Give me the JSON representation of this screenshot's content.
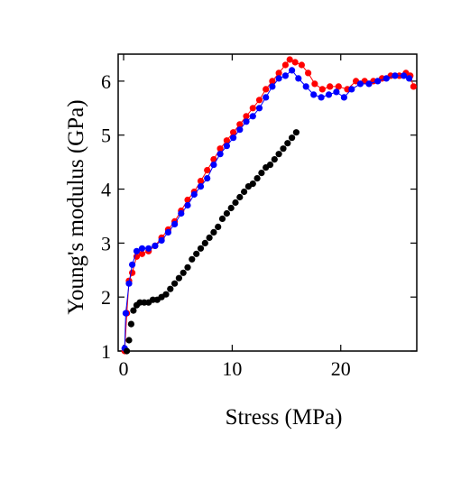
{
  "chart_data": {
    "type": "scatter",
    "xlabel": "Stress (MPa)",
    "ylabel": "Young's modulus (GPa)",
    "xlim": [
      -0.5,
      27
    ],
    "ylim": [
      1,
      6.5
    ],
    "xticks": [
      0,
      10,
      20
    ],
    "yticks": [
      1,
      2,
      3,
      4,
      5,
      6
    ],
    "grid": false,
    "series": [
      {
        "color": "#ff0000",
        "connected": true,
        "points": [
          [
            0.1,
            1.0
          ],
          [
            0.3,
            1.7
          ],
          [
            0.5,
            2.3
          ],
          [
            0.8,
            2.45
          ],
          [
            1.2,
            2.75
          ],
          [
            1.7,
            2.8
          ],
          [
            2.3,
            2.85
          ],
          [
            2.9,
            2.95
          ],
          [
            3.5,
            3.1
          ],
          [
            4.1,
            3.25
          ],
          [
            4.7,
            3.4
          ],
          [
            5.3,
            3.6
          ],
          [
            5.9,
            3.8
          ],
          [
            6.5,
            3.95
          ],
          [
            7.1,
            4.15
          ],
          [
            7.7,
            4.35
          ],
          [
            8.3,
            4.55
          ],
          [
            8.9,
            4.75
          ],
          [
            9.5,
            4.9
          ],
          [
            10.1,
            5.05
          ],
          [
            10.7,
            5.2
          ],
          [
            11.3,
            5.35
          ],
          [
            11.9,
            5.5
          ],
          [
            12.5,
            5.65
          ],
          [
            13.1,
            5.85
          ],
          [
            13.7,
            6.0
          ],
          [
            14.3,
            6.15
          ],
          [
            14.9,
            6.3
          ],
          [
            15.3,
            6.4
          ],
          [
            15.8,
            6.35
          ],
          [
            16.4,
            6.3
          ],
          [
            17.0,
            6.15
          ],
          [
            17.6,
            5.95
          ],
          [
            18.3,
            5.85
          ],
          [
            19.0,
            5.9
          ],
          [
            19.8,
            5.9
          ],
          [
            20.6,
            5.85
          ],
          [
            21.4,
            6.0
          ],
          [
            22.2,
            6.0
          ],
          [
            23.0,
            6.0
          ],
          [
            23.8,
            6.05
          ],
          [
            24.6,
            6.1
          ],
          [
            25.4,
            6.1
          ],
          [
            26.0,
            6.15
          ],
          [
            26.4,
            6.1
          ],
          [
            26.7,
            5.9
          ]
        ]
      },
      {
        "color": "#0000ff",
        "connected": true,
        "points": [
          [
            0.1,
            1.05
          ],
          [
            0.2,
            1.7
          ],
          [
            0.5,
            2.25
          ],
          [
            0.8,
            2.6
          ],
          [
            1.2,
            2.85
          ],
          [
            1.7,
            2.9
          ],
          [
            2.3,
            2.9
          ],
          [
            2.9,
            2.95
          ],
          [
            3.5,
            3.05
          ],
          [
            4.1,
            3.2
          ],
          [
            4.7,
            3.35
          ],
          [
            5.3,
            3.55
          ],
          [
            5.9,
            3.7
          ],
          [
            6.5,
            3.9
          ],
          [
            7.1,
            4.05
          ],
          [
            7.7,
            4.2
          ],
          [
            8.3,
            4.45
          ],
          [
            8.9,
            4.65
          ],
          [
            9.5,
            4.8
          ],
          [
            10.1,
            4.95
          ],
          [
            10.7,
            5.1
          ],
          [
            11.3,
            5.25
          ],
          [
            11.9,
            5.35
          ],
          [
            12.5,
            5.5
          ],
          [
            13.1,
            5.7
          ],
          [
            13.7,
            5.9
          ],
          [
            14.3,
            6.05
          ],
          [
            14.9,
            6.1
          ],
          [
            15.5,
            6.2
          ],
          [
            16.1,
            6.05
          ],
          [
            16.8,
            5.9
          ],
          [
            17.5,
            5.75
          ],
          [
            18.2,
            5.7
          ],
          [
            18.9,
            5.75
          ],
          [
            19.6,
            5.8
          ],
          [
            20.3,
            5.7
          ],
          [
            21.0,
            5.85
          ],
          [
            21.8,
            5.95
          ],
          [
            22.6,
            5.95
          ],
          [
            23.4,
            6.0
          ],
          [
            24.2,
            6.05
          ],
          [
            25.0,
            6.1
          ],
          [
            25.8,
            6.1
          ],
          [
            26.3,
            6.05
          ]
        ]
      },
      {
        "color": "#000000",
        "connected": false,
        "points": [
          [
            0.3,
            1.0
          ],
          [
            0.5,
            1.2
          ],
          [
            0.7,
            1.5
          ],
          [
            0.9,
            1.75
          ],
          [
            1.2,
            1.85
          ],
          [
            1.5,
            1.9
          ],
          [
            1.9,
            1.9
          ],
          [
            2.3,
            1.9
          ],
          [
            2.7,
            1.95
          ],
          [
            3.1,
            1.95
          ],
          [
            3.5,
            2.0
          ],
          [
            3.9,
            2.05
          ],
          [
            4.3,
            2.15
          ],
          [
            4.7,
            2.25
          ],
          [
            5.1,
            2.35
          ],
          [
            5.5,
            2.45
          ],
          [
            5.9,
            2.55
          ],
          [
            6.3,
            2.7
          ],
          [
            6.7,
            2.8
          ],
          [
            7.1,
            2.9
          ],
          [
            7.5,
            3.0
          ],
          [
            7.9,
            3.1
          ],
          [
            8.3,
            3.2
          ],
          [
            8.7,
            3.3
          ],
          [
            9.1,
            3.45
          ],
          [
            9.5,
            3.55
          ],
          [
            9.9,
            3.65
          ],
          [
            10.3,
            3.75
          ],
          [
            10.7,
            3.85
          ],
          [
            11.1,
            3.95
          ],
          [
            11.5,
            4.05
          ],
          [
            11.9,
            4.1
          ],
          [
            12.3,
            4.2
          ],
          [
            12.7,
            4.3
          ],
          [
            13.1,
            4.4
          ],
          [
            13.5,
            4.45
          ],
          [
            13.9,
            4.55
          ],
          [
            14.3,
            4.65
          ],
          [
            14.7,
            4.75
          ],
          [
            15.1,
            4.85
          ],
          [
            15.5,
            4.95
          ],
          [
            15.9,
            5.05
          ]
        ]
      }
    ]
  }
}
